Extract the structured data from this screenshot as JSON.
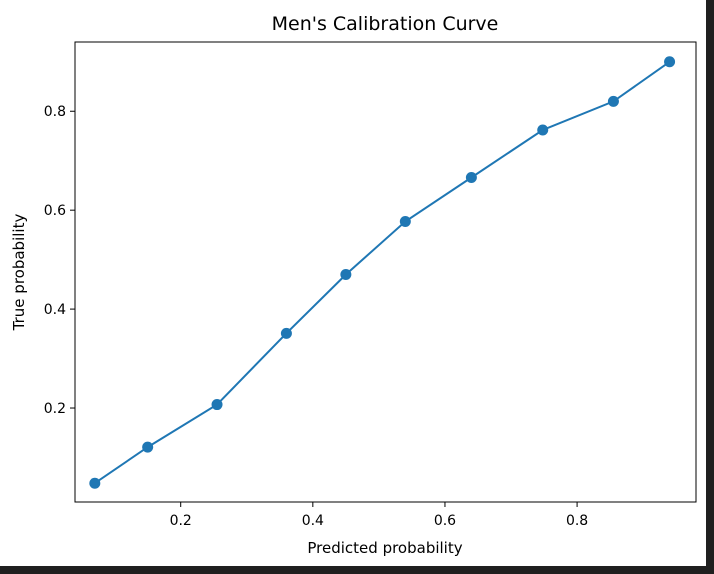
{
  "chart_data": {
    "type": "line",
    "title": "Men's Calibration Curve",
    "xlabel": "Predicted probability",
    "ylabel": "True probability",
    "xlim": [
      0.04,
      0.98
    ],
    "ylim": [
      0.01,
      0.94
    ],
    "xticks": [
      0.2,
      0.4,
      0.6,
      0.8
    ],
    "yticks": [
      0.2,
      0.4,
      0.6,
      0.8
    ],
    "grid": false,
    "series": [
      {
        "color": "#1f77b4",
        "marker": "circle",
        "points": [
          {
            "x": 0.07,
            "y": 0.048
          },
          {
            "x": 0.15,
            "y": 0.121
          },
          {
            "x": 0.255,
            "y": 0.207
          },
          {
            "x": 0.36,
            "y": 0.351
          },
          {
            "x": 0.45,
            "y": 0.47
          },
          {
            "x": 0.54,
            "y": 0.577
          },
          {
            "x": 0.64,
            "y": 0.666
          },
          {
            "x": 0.748,
            "y": 0.762
          },
          {
            "x": 0.855,
            "y": 0.82
          },
          {
            "x": 0.94,
            "y": 0.9
          }
        ]
      }
    ]
  }
}
